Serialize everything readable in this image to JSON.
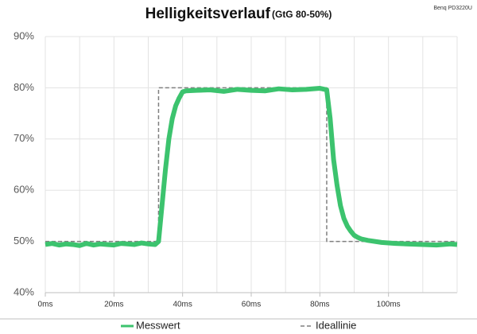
{
  "chart_data": {
    "type": "line",
    "title": "Helligkeitsverlauf",
    "subtitle": "(GtG 80-50%)",
    "annotation": "Benq PD3220U",
    "xlim": [
      0,
      120
    ],
    "xticks": [
      {
        "value": 0,
        "label": "0ms"
      },
      {
        "value": 20,
        "label": "20ms"
      },
      {
        "value": 40,
        "label": "40ms"
      },
      {
        "value": 60,
        "label": "60ms"
      },
      {
        "value": 80,
        "label": "80ms"
      },
      {
        "value": 100,
        "label": "100ms"
      }
    ],
    "x_minor_grid": [
      10,
      30,
      50,
      70,
      90,
      110
    ],
    "ylim": [
      40,
      90
    ],
    "yticks": [
      {
        "value": 40,
        "label": "40%"
      },
      {
        "value": 50,
        "label": "50%"
      },
      {
        "value": 60,
        "label": "60%"
      },
      {
        "value": 70,
        "label": "70%"
      },
      {
        "value": 80,
        "label": "80%"
      },
      {
        "value": 90,
        "label": "90%"
      }
    ],
    "grid": true,
    "legend": "bottom",
    "series": [
      {
        "name": "Ideallinie",
        "color": "#7f7f7f",
        "dashed": true,
        "x": [
          0,
          33,
          33,
          82,
          82,
          120
        ],
        "values": [
          50,
          50,
          80,
          80,
          50,
          50
        ]
      },
      {
        "name": "Messwert",
        "color": "#3cc36e",
        "dashed": false,
        "x": [
          0,
          2,
          4,
          6,
          8,
          10,
          12,
          14,
          16,
          18,
          20,
          22,
          24,
          26,
          28,
          30,
          32,
          33,
          34,
          35,
          36,
          37,
          38,
          39,
          40,
          41,
          44,
          48,
          52,
          56,
          60,
          64,
          68,
          72,
          76,
          80,
          82,
          83,
          84,
          85,
          86,
          87,
          88,
          89,
          90,
          91,
          92,
          94,
          98,
          102,
          106,
          110,
          114,
          118,
          120
        ],
        "values": [
          49.4,
          49.6,
          49.3,
          49.5,
          49.4,
          49.2,
          49.6,
          49.3,
          49.5,
          49.4,
          49.3,
          49.6,
          49.5,
          49.4,
          49.7,
          49.5,
          49.4,
          50,
          57,
          64,
          70,
          74,
          76.5,
          78,
          79.2,
          79.4,
          79.5,
          79.6,
          79.3,
          79.7,
          79.5,
          79.4,
          79.8,
          79.6,
          79.7,
          79.9,
          79.6,
          74,
          66,
          61,
          57,
          54.5,
          53,
          52,
          51.2,
          50.8,
          50.5,
          50.2,
          49.8,
          49.6,
          49.5,
          49.4,
          49.3,
          49.5,
          49.4
        ]
      }
    ]
  }
}
